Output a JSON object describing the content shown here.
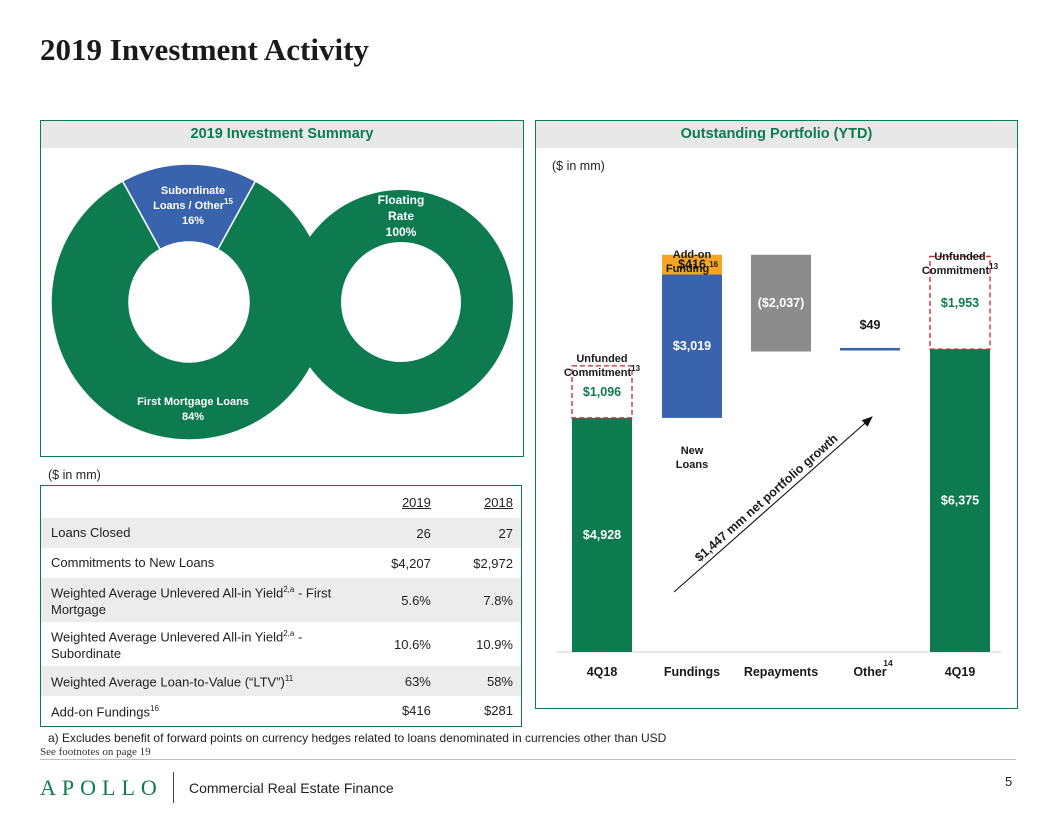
{
  "page": {
    "title": "2019 Investment Activity",
    "number": "5"
  },
  "summary_panel": {
    "title": "2019 Investment Summary",
    "donut_position": {
      "slices": [
        {
          "label_line1": "Subordinate",
          "label_line2": "Loans / Other",
          "sup": "15",
          "percent_text": "16%",
          "value": 16,
          "color": "#3a63ad"
        },
        {
          "label_line1": "First Mortgage Loans",
          "label_line2": "",
          "sup": "",
          "percent_text": "84%",
          "value": 84,
          "color": "#0e7a50"
        }
      ]
    },
    "donut_rate": {
      "slices": [
        {
          "label_line1": "Floating",
          "label_line2": "Rate",
          "percent_text": "100%",
          "value": 100,
          "color": "#0e7a50"
        }
      ]
    }
  },
  "table": {
    "unit": "($ in mm)",
    "headers": [
      "",
      "2019",
      "2018"
    ],
    "rows": [
      {
        "label": "Loans Closed",
        "sup": "",
        "label_tail": "",
        "v2019": "26",
        "v2018": "27"
      },
      {
        "label": "Commitments to New Loans",
        "sup": "",
        "label_tail": "",
        "v2019": "$4,207",
        "v2018": "$2,972"
      },
      {
        "label": "Weighted Average Unlevered All-in Yield",
        "sup": "2,a",
        "label_tail": " - First Mortgage",
        "v2019": "5.6%",
        "v2018": "7.8%"
      },
      {
        "label": "Weighted Average Unlevered All-in Yield",
        "sup": "2,a",
        "label_tail": " - Subordinate",
        "v2019": "10.6%",
        "v2018": "10.9%"
      },
      {
        "label": "Weighted Average Loan-to-Value (“LTV”)",
        "sup": "11",
        "label_tail": "",
        "v2019": "63%",
        "v2018": "58%"
      },
      {
        "label": "Add-on Fundings",
        "sup": "16",
        "label_tail": "",
        "v2019": "$416",
        "v2018": "$281"
      }
    ]
  },
  "portfolio_panel": {
    "title": "Outstanding Portfolio (YTD)",
    "unit": "($ in mm)"
  },
  "chart_data": {
    "type": "bar",
    "subtype": "waterfall",
    "categories": [
      "4Q18",
      "Fundings",
      "Repayments",
      "Other",
      "4Q19"
    ],
    "category_sup": [
      "",
      "",
      "",
      "14",
      ""
    ],
    "segments": [
      {
        "category": "4Q18",
        "name": "",
        "value": 4928,
        "label": "$4,928",
        "base": 0,
        "color": "#0e7a50",
        "style": "solid",
        "label_color": "#ffffff"
      },
      {
        "category": "4Q18",
        "name": "Unfunded Commitment",
        "value": 1096,
        "label": "$1,096",
        "base": 4928,
        "color": "#c62828",
        "style": "dashed",
        "label_color": "#0e7a50"
      },
      {
        "category": "Fundings",
        "name": "New Loans",
        "value": 3019,
        "label": "$3,019",
        "base": 4928,
        "color": "#3a63ad",
        "style": "solid",
        "label_color": "#ffffff"
      },
      {
        "category": "Fundings",
        "name": "Add-on Funding",
        "value": 416,
        "label": "$416",
        "base": 7947,
        "color": "#f6a623",
        "style": "solid",
        "label_color": "#1a1a1a"
      },
      {
        "category": "Repayments",
        "name": "",
        "value": -2037,
        "label": "($2,037)",
        "base": 8363,
        "color": "#8c8c8c",
        "style": "solid",
        "label_color": "#ffffff"
      },
      {
        "category": "Other",
        "name": "",
        "value": 49,
        "label": "$49",
        "base": 6326,
        "color": "#3a63ad",
        "style": "line",
        "label_color": "#1a1a1a"
      },
      {
        "category": "4Q19",
        "name": "",
        "value": 6375,
        "label": "$6,375",
        "base": 0,
        "color": "#0e7a50",
        "style": "solid",
        "label_color": "#ffffff"
      },
      {
        "category": "4Q19",
        "name": "Unfunded Commitment",
        "value": 1953,
        "label": "$1,953",
        "base": 6375,
        "color": "#c62828",
        "style": "dashed",
        "label_color": "#0e7a50"
      }
    ],
    "annotations": {
      "unfunded_left": {
        "line1": "Unfunded",
        "line2": "Commitment",
        "sup": "13"
      },
      "unfunded_right": {
        "line1": "Unfunded",
        "line2": "Commitment",
        "sup": "13"
      },
      "addon": {
        "line1": "Add-on",
        "line2": "Funding",
        "sup": "16"
      },
      "newloans": {
        "line1": "New",
        "line2": "Loans"
      },
      "growth": "$1,447 mm net portfolio growth"
    },
    "ylim": [
      0,
      8900
    ],
    "grid": false
  },
  "footnotes": {
    "a": "a) Excludes benefit of forward points on currency hedges related to loans denominated in currencies other than USD",
    "see": "See footnotes on page 19"
  },
  "footer": {
    "logo": "APOLLO",
    "division": "Commercial Real Estate Finance"
  },
  "colors": {
    "brand_green": "#0e7a50",
    "blue": "#3a63ad",
    "orange": "#f6a623",
    "grey": "#8c8c8c",
    "red_dashed": "#c62828"
  }
}
